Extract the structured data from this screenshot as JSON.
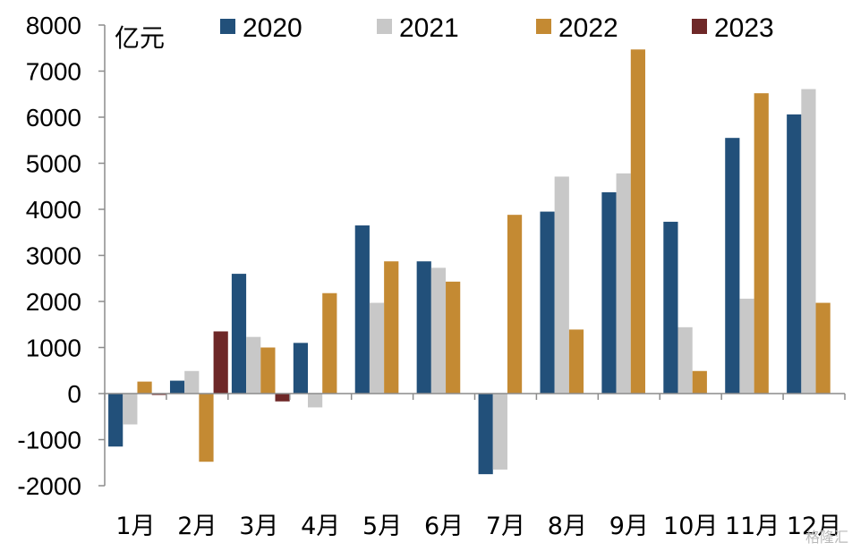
{
  "chart_data": {
    "type": "bar",
    "unit_label": "亿元",
    "categories": [
      "1月",
      "2月",
      "3月",
      "4月",
      "5月",
      "6月",
      "7月",
      "8月",
      "9月",
      "10月",
      "11月",
      "12月"
    ],
    "series": [
      {
        "name": "2020",
        "color": "#22507A",
        "values": [
          -1150,
          280,
          2600,
          1100,
          3650,
          2870,
          -1750,
          3950,
          4370,
          3730,
          5550,
          6060
        ]
      },
      {
        "name": "2021",
        "color": "#C8C8C8",
        "values": [
          -670,
          490,
          1230,
          -300,
          1970,
          2730,
          -1650,
          4710,
          4780,
          1440,
          2060,
          6610
        ]
      },
      {
        "name": "2022",
        "color": "#C48A33",
        "values": [
          260,
          -1480,
          1000,
          2180,
          2870,
          2430,
          3880,
          1390,
          7470,
          490,
          6520,
          1970
        ]
      },
      {
        "name": "2023",
        "color": "#6E2828",
        "values": [
          -30,
          1350,
          -170,
          null,
          null,
          null,
          null,
          null,
          null,
          null,
          null,
          null
        ]
      }
    ],
    "ylim": [
      -2000,
      8000
    ],
    "yticks": [
      -2000,
      -1000,
      0,
      1000,
      2000,
      3000,
      4000,
      5000,
      6000,
      7000,
      8000
    ],
    "grid": false,
    "legend_position": "top"
  },
  "watermark": "格隆汇"
}
